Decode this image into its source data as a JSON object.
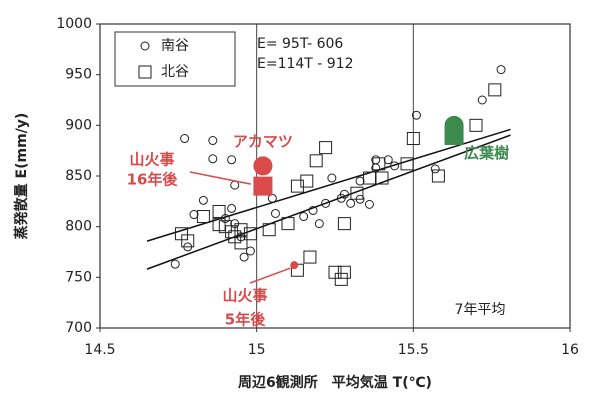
{
  "chart_data": {
    "type": "scatter",
    "xlabel": "周辺6観測所　平均気温 T(℃)",
    "ylabel": "蒸発散量 E(mm/y)",
    "xlim": [
      14.5,
      16
    ],
    "xticks": [
      14.5,
      15,
      15.5,
      16
    ],
    "ylim": [
      700,
      1000
    ],
    "yticks": [
      700,
      750,
      800,
      850,
      900,
      950,
      1000
    ],
    "grid": "x",
    "equations": [
      "E=  95T- 606",
      "E=114T - 912"
    ],
    "series": [
      {
        "name": "南谷",
        "marker": "circle",
        "color": "#222222",
        "x": [
          14.77,
          14.86,
          14.86,
          14.92,
          14.93,
          14.83,
          14.8,
          14.9,
          14.92,
          14.78,
          14.74,
          14.96,
          14.98,
          14.95,
          14.93,
          15.03,
          15.05,
          15.06,
          15.15,
          15.18,
          15.2,
          15.22,
          15.24,
          15.27,
          15.28,
          15.3,
          15.33,
          15.33,
          15.38,
          15.38,
          15.42,
          15.36,
          15.44,
          15.51,
          15.57,
          15.72,
          15.78
        ],
        "values": [
          887,
          885,
          867,
          866,
          841,
          826,
          812,
          808,
          818,
          780,
          763,
          770,
          776,
          790,
          803,
          856,
          828,
          813,
          810,
          816,
          803,
          823,
          848,
          828,
          832,
          823,
          827,
          845,
          866,
          858,
          866,
          822,
          860,
          910,
          857,
          925,
          955
        ]
      },
      {
        "name": "北谷",
        "marker": "square",
        "color": "#222222",
        "x": [
          14.76,
          14.78,
          14.83,
          14.88,
          14.88,
          14.9,
          14.92,
          14.93,
          14.95,
          14.95,
          14.98,
          15.04,
          15.1,
          15.13,
          15.16,
          15.17,
          15.19,
          15.22,
          15.25,
          15.27,
          15.28,
          15.28,
          15.32,
          15.36,
          15.39,
          15.4,
          15.48,
          15.5,
          15.58,
          15.7,
          15.76,
          15.13
        ],
        "values": [
          793,
          786,
          810,
          802,
          815,
          800,
          795,
          790,
          784,
          797,
          793,
          797,
          803,
          840,
          845,
          770,
          865,
          878,
          755,
          748,
          755,
          803,
          833,
          848,
          862,
          848,
          862,
          887,
          850,
          900,
          935,
          757
        ]
      }
    ],
    "fit_lines": [
      {
        "x": [
          14.65,
          15.81
        ],
        "values": [
          785.75,
          895.95
        ]
      },
      {
        "x": [
          14.65,
          15.81
        ],
        "values": [
          758.1,
          890.34
        ]
      }
    ],
    "highlights": [
      {
        "name": "アカマツ",
        "color": "#d94a4a",
        "markers": [
          "circle",
          "square"
        ],
        "x": [
          15.02,
          15.02
        ],
        "values": [
          860,
          840
        ]
      },
      {
        "name": "広葉樹",
        "color": "#3d8a4e",
        "markers": [
          "circle",
          "square"
        ],
        "x": [
          15.63,
          15.63
        ],
        "values": [
          900,
          890
        ]
      },
      {
        "color": "#d94a4a",
        "markers": [
          "dot"
        ],
        "x": [
          15.12
        ],
        "values": [
          762
        ]
      }
    ],
    "annotations": [
      "山火事",
      "16年後",
      "山火事",
      "5年後",
      "7年平均"
    ]
  }
}
